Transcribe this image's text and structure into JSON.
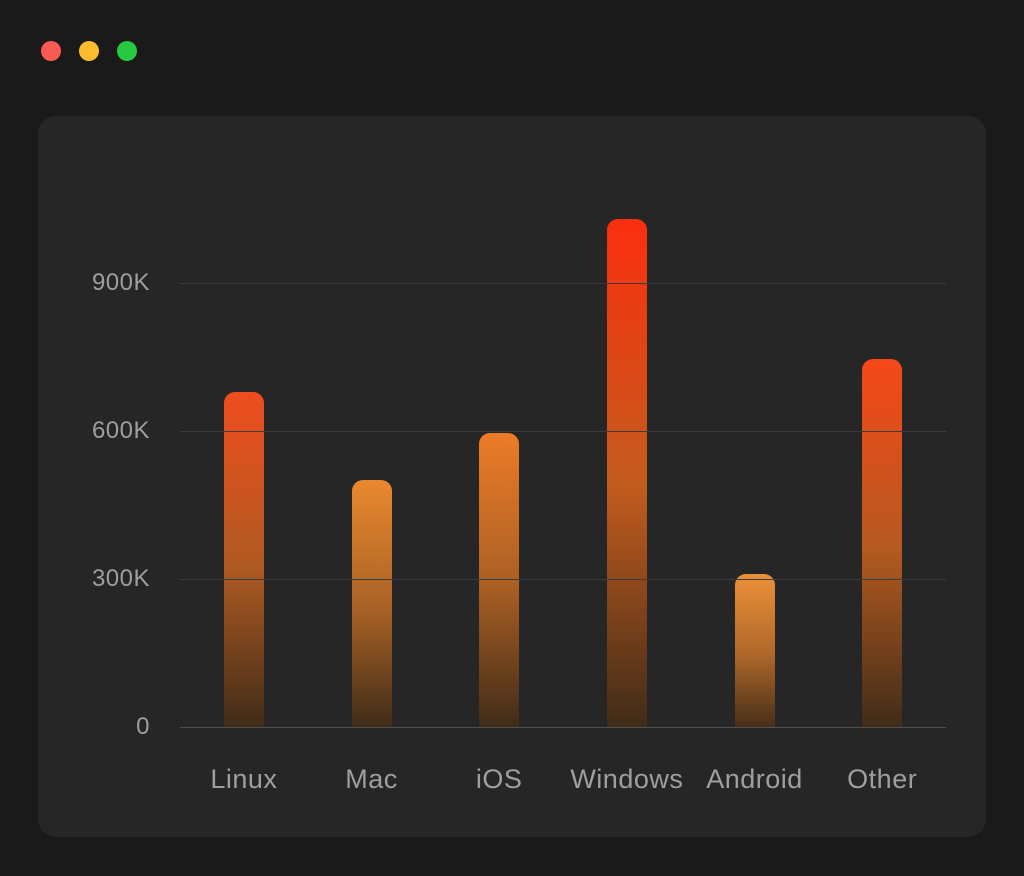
{
  "window": {
    "controls": {
      "close": {
        "label": "close",
        "color": "#fb5a52"
      },
      "minimize": {
        "label": "minimize",
        "color": "#fdbc2e"
      },
      "zoom": {
        "label": "zoom",
        "color": "#26c940"
      }
    },
    "background_color": "#1a1a1a",
    "panel_color": "#262626"
  },
  "chart_data": {
    "type": "bar",
    "title": "",
    "categories": [
      "Linux",
      "Mac",
      "iOS",
      "Windows",
      "Android",
      "Other"
    ],
    "values": [
      680000,
      500000,
      595000,
      1030000,
      310000,
      745000
    ],
    "y_axis": {
      "ticks": [
        {
          "value": 0,
          "label": "0"
        },
        {
          "value": 300000,
          "label": "300K"
        },
        {
          "value": 600000,
          "label": "600K"
        },
        {
          "value": 900000,
          "label": "900K"
        }
      ],
      "max": 1150000
    },
    "grid": true,
    "legend": false,
    "xlabel": "",
    "ylabel": "",
    "colors": {
      "grid_line": "#3c3c3c",
      "axis_line": "#4f4f4f",
      "tick_label": "#9e9e9e",
      "category_label": "#9f9f9f"
    },
    "bar_gradients": [
      [
        "#ef4d1f",
        "#b05a22",
        "#402c18"
      ],
      [
        "#e9882e",
        "#a96226",
        "#402c18"
      ],
      [
        "#ec7b28",
        "#aa5f24",
        "#402c18"
      ],
      [
        "#fb2e10",
        "#c45c1e",
        "#402c18"
      ],
      [
        "#ec9039",
        "#b0682a",
        "#472f18"
      ],
      [
        "#f64718",
        "#b45a20",
        "#402c18"
      ]
    ]
  }
}
